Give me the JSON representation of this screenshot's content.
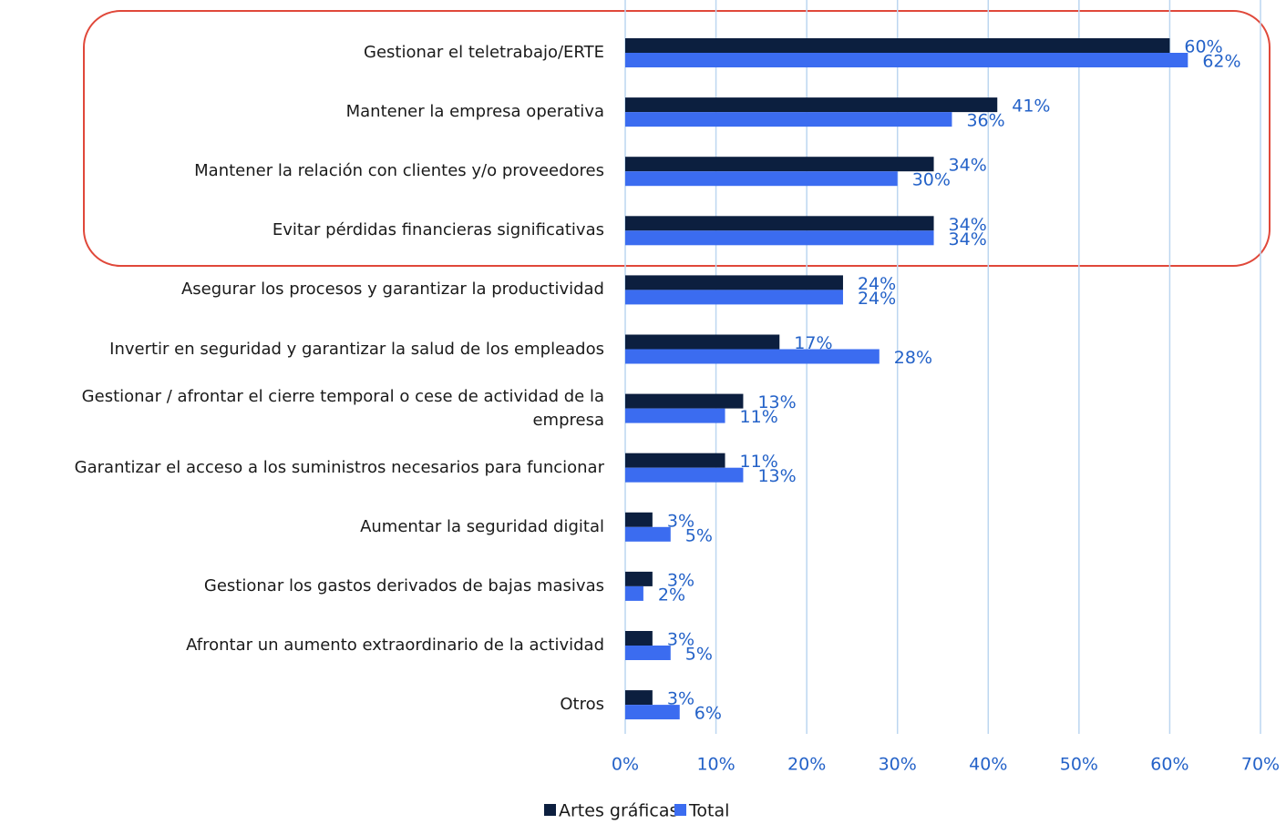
{
  "chart_data": {
    "type": "barh",
    "categories": [
      "Gestionar el teletrabajo/ERTE",
      "Mantener la empresa operativa",
      "Mantener la relación con clientes y/o proveedores",
      "Evitar pérdidas financieras significativas",
      "Asegurar los procesos y garantizar la productividad",
      "Invertir en seguridad y garantizar la salud de los empleados",
      "Gestionar / afrontar el cierre temporal o cese de actividad de la empresa",
      "Garantizar el acceso a los suministros necesarios para funcionar",
      "Aumentar la seguridad digital",
      "Gestionar los gastos derivados de bajas masivas",
      "Afrontar un aumento extraordinario de la actividad",
      "Otros"
    ],
    "series": [
      {
        "name": "Artes gráficas",
        "color": "#0c1f3f",
        "values": [
          60,
          41,
          34,
          34,
          24,
          17,
          13,
          11,
          3,
          3,
          3,
          3
        ],
        "value_labels": [
          "60%",
          "41%",
          "34%",
          "34%",
          "24%",
          "17%",
          "13%",
          "11%",
          "3%",
          "3%",
          "3%",
          "3%"
        ]
      },
      {
        "name": "Total",
        "color": "#3b6cf0",
        "values": [
          62,
          36,
          30,
          34,
          24,
          28,
          11,
          13,
          5,
          2,
          5,
          6
        ],
        "value_labels": [
          "62%",
          "36%",
          "30%",
          "34%",
          "24%",
          "28%",
          "11%",
          "13%",
          "5%",
          "2%",
          "5%",
          "6%"
        ]
      }
    ],
    "xlim": [
      0,
      70
    ],
    "xticks": [
      {
        "value": 0,
        "label": "0%"
      },
      {
        "value": 10,
        "label": "10%"
      },
      {
        "value": 20,
        "label": "20%"
      },
      {
        "value": 30,
        "label": "30%"
      },
      {
        "value": 40,
        "label": "40%"
      },
      {
        "value": 50,
        "label": "50%"
      },
      {
        "value": 60,
        "label": "60%"
      },
      {
        "value": 70,
        "label": "70%"
      }
    ],
    "grid": true,
    "legend": "bottom"
  }
}
